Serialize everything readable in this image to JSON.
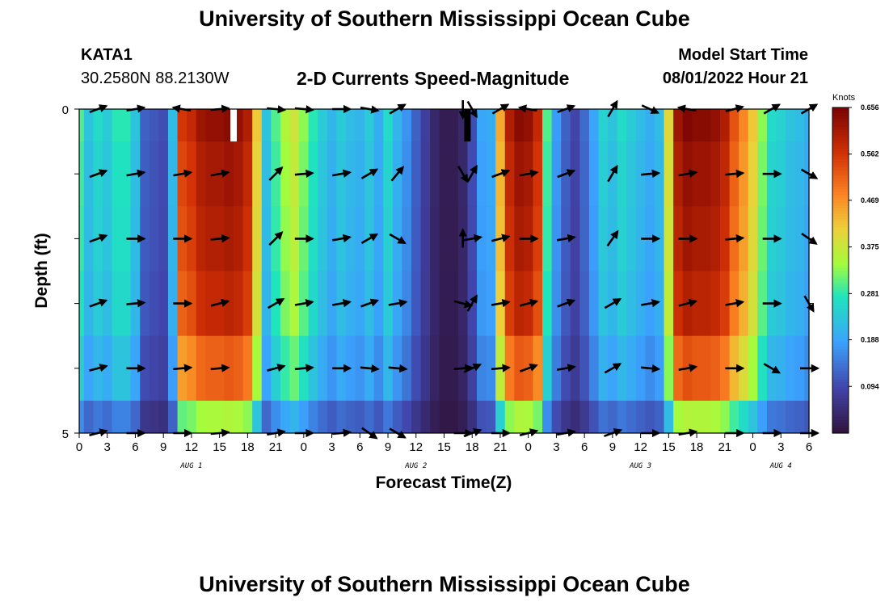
{
  "header": {
    "title": "University of Southern Mississippi Ocean Cube",
    "station": "KATA1",
    "coords": "30.2580N  88.2130W",
    "subtitle": "2-D Currents Speed-Magnitude",
    "model_start_label": "Model Start Time",
    "model_start_value": "08/01/2022 Hour 21"
  },
  "footer": {
    "title": "University of Southern Mississippi Ocean Cube"
  },
  "chart_data": {
    "type": "heatmap",
    "xlabel": "Forecast Time(Z)",
    "ylabel": "Depth (ft)",
    "x_ticks": [
      "0",
      "3",
      "6",
      "9",
      "12",
      "15",
      "18",
      "21",
      "0",
      "3",
      "6",
      "9",
      "12",
      "15",
      "18",
      "21",
      "0",
      "3",
      "6",
      "9",
      "12",
      "15",
      "18",
      "21",
      "0",
      "3",
      "6"
    ],
    "date_labels": [
      {
        "label": "AUG 1",
        "tick": 4
      },
      {
        "label": "AUG 2",
        "tick": 12
      },
      {
        "label": "AUG 3",
        "tick": 20
      },
      {
        "label": "AUG 4",
        "tick": 25
      }
    ],
    "y_ticks": [
      {
        "value": 0,
        "label": "0"
      },
      {
        "value": 5,
        "label": "5"
      }
    ],
    "ylim": [
      0,
      5
    ],
    "x_hours": [
      0,
      78
    ],
    "colorbar": {
      "unit": "Knots",
      "range": [
        0,
        0.656
      ],
      "tick_values": [
        0.094,
        0.188,
        0.281,
        0.375,
        0.469,
        0.562,
        0.656
      ],
      "tick_labels": [
        "0.094",
        "0.188",
        "0.281",
        "0.375",
        "0.469",
        "0.562",
        "0.656"
      ]
    },
    "speed_by_hour": [
      0.3,
      0.23,
      0.26,
      0.24,
      0.28,
      0.28,
      0.23,
      0.12,
      0.11,
      0.1,
      0.22,
      0.56,
      0.58,
      0.62,
      0.63,
      0.63,
      0.64,
      0.63,
      0.6,
      0.42,
      0.23,
      0.3,
      0.35,
      0.38,
      0.33,
      0.28,
      0.24,
      0.21,
      0.24,
      0.22,
      0.21,
      0.24,
      0.2,
      0.26,
      0.21,
      0.17,
      0.12,
      0.08,
      0.04,
      0.02,
      0.02,
      0.04,
      0.1,
      0.19,
      0.2,
      0.45,
      0.6,
      0.64,
      0.63,
      0.58,
      0.3,
      0.18,
      0.12,
      0.09,
      0.13,
      0.19,
      0.25,
      0.23,
      0.26,
      0.24,
      0.22,
      0.2,
      0.22,
      0.4,
      0.62,
      0.65,
      0.64,
      0.64,
      0.63,
      0.6,
      0.53,
      0.48,
      0.42,
      0.33,
      0.26,
      0.25,
      0.23,
      0.22,
      0.2
    ],
    "depth_layer_factors": [
      1.0,
      0.97,
      0.95,
      0.92,
      0.82,
      0.55
    ],
    "missing_bars": [
      {
        "hour": 16.5,
        "color": "#ffffff"
      },
      {
        "hour": 41.5,
        "color": "#000000"
      }
    ],
    "arrow_hours": [
      2,
      6,
      11,
      15,
      21,
      24,
      28,
      31,
      34,
      41,
      42,
      45,
      48,
      52,
      57,
      61,
      65,
      70,
      74,
      78
    ],
    "arrow_depths": [
      0,
      1,
      2,
      3,
      4,
      5
    ],
    "arrow_angles": [
      [
        -20,
        -10,
        190,
        -5,
        5,
        5,
        0,
        10,
        -30,
        90,
        60,
        -30,
        190,
        -20,
        -60,
        25,
        190,
        -15,
        -30,
        -30
      ],
      [
        -20,
        -10,
        -10,
        -10,
        -45,
        -5,
        -10,
        -30,
        -50,
        60,
        -60,
        -20,
        -10,
        -20,
        -60,
        -5,
        -10,
        -5,
        0,
        30
      ],
      [
        -20,
        0,
        0,
        -5,
        -45,
        0,
        -10,
        -30,
        30,
        -90,
        -10,
        -15,
        0,
        -10,
        -55,
        0,
        0,
        -5,
        0,
        35
      ],
      [
        -20,
        -5,
        0,
        -15,
        -30,
        -10,
        -10,
        -20,
        -10,
        15,
        -60,
        -10,
        -15,
        -20,
        -30,
        -10,
        -15,
        -10,
        0,
        60
      ],
      [
        -15,
        0,
        -5,
        -5,
        -15,
        -5,
        0,
        5,
        5,
        -5,
        -25,
        -5,
        -20,
        -10,
        -30,
        5,
        -10,
        0,
        30,
        0
      ],
      [
        -15,
        0,
        0,
        -5,
        -10,
        0,
        -5,
        35,
        30,
        0,
        -20,
        0,
        -15,
        -10,
        -20,
        0,
        -10,
        0,
        0,
        0
      ]
    ]
  }
}
